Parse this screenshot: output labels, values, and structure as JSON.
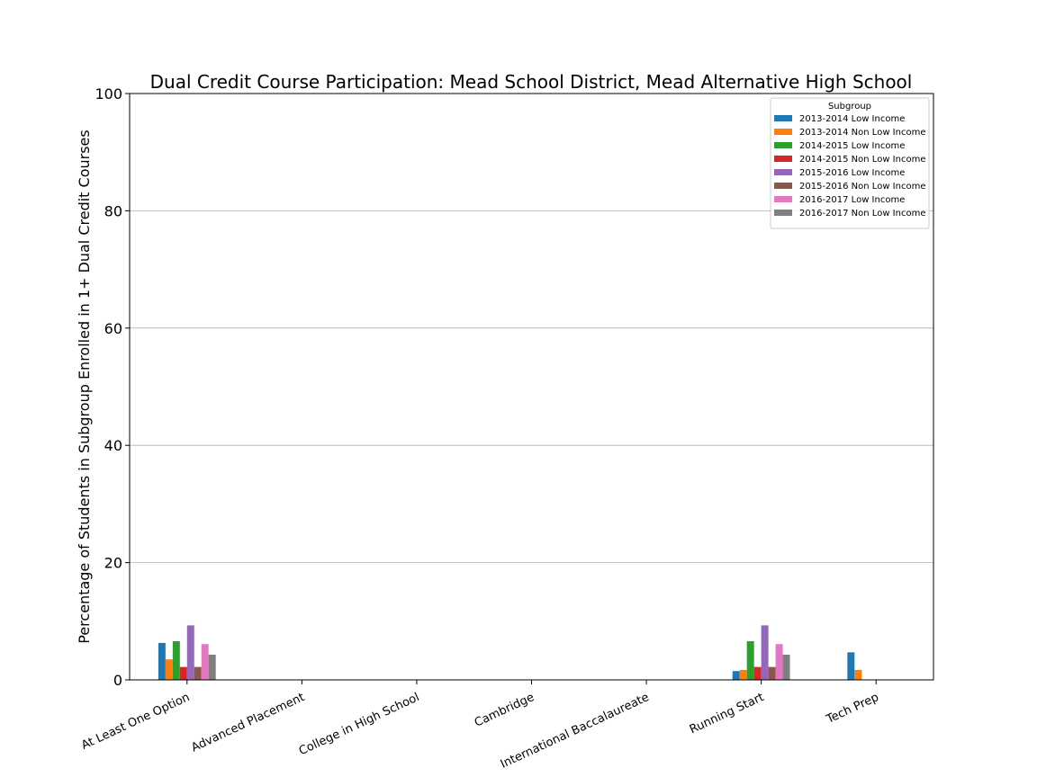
{
  "chart_data": {
    "type": "bar",
    "title": "Dual Credit Course Participation: Mead School District, Mead Alternative High School",
    "xlabel": "",
    "ylabel": "Percentage of Students in Subgroup Enrolled in 1+ Dual Credit Courses",
    "ylim": [
      0,
      100
    ],
    "yticks": [
      0,
      20,
      40,
      60,
      80,
      100
    ],
    "grid": "horizontal",
    "legend_title": "Subgroup",
    "legend_position": "top-right",
    "categories": [
      "At Least One Option",
      "Advanced Placement",
      "College in High School",
      "Cambridge",
      "International Baccalaureate",
      "Running Start",
      "Tech Prep"
    ],
    "series": [
      {
        "name": "2013-2014 Low Income",
        "color": "#1f77b4",
        "values": [
          6.3,
          0,
          0,
          0,
          0,
          1.5,
          4.7
        ]
      },
      {
        "name": "2013-2014 Non Low Income",
        "color": "#ff7f0e",
        "values": [
          3.5,
          0,
          0,
          0,
          0,
          1.7,
          1.7
        ]
      },
      {
        "name": "2014-2015 Low Income",
        "color": "#2ca02c",
        "values": [
          6.6,
          0,
          0,
          0,
          0,
          6.6,
          0
        ]
      },
      {
        "name": "2014-2015 Non Low Income",
        "color": "#d62728",
        "values": [
          2.2,
          0,
          0,
          0,
          0,
          2.2,
          0
        ]
      },
      {
        "name": "2015-2016 Low Income",
        "color": "#9467bd",
        "values": [
          9.3,
          0,
          0,
          0,
          0,
          9.3,
          0
        ]
      },
      {
        "name": "2015-2016 Non Low Income",
        "color": "#8c564b",
        "values": [
          2.2,
          0,
          0,
          0,
          0,
          2.2,
          0
        ]
      },
      {
        "name": "2016-2017 Low Income",
        "color": "#e377c2",
        "values": [
          6.1,
          0,
          0,
          0,
          0,
          6.1,
          0
        ]
      },
      {
        "name": "2016-2017 Non Low Income",
        "color": "#7f7f7f",
        "values": [
          4.3,
          0,
          0,
          0,
          0,
          4.3,
          0
        ]
      }
    ]
  }
}
